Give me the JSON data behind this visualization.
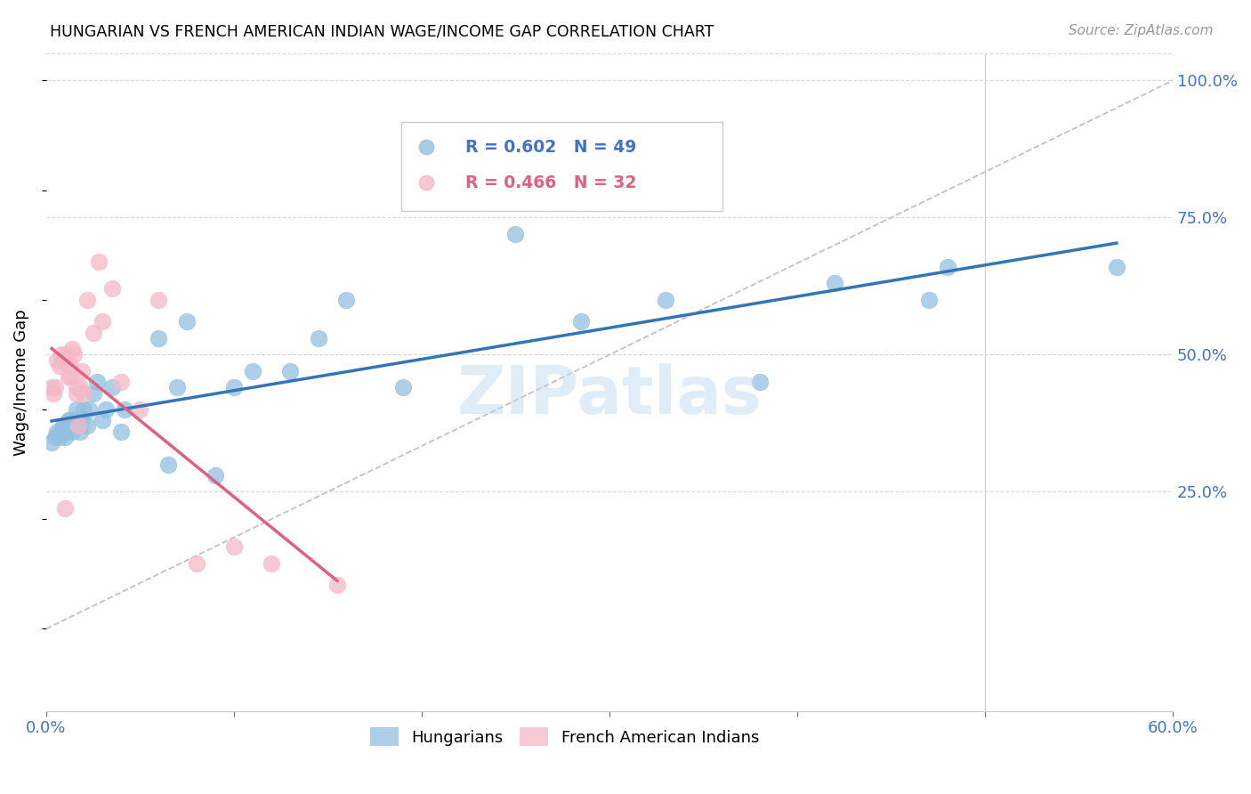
{
  "title": "HUNGARIAN VS FRENCH AMERICAN INDIAN WAGE/INCOME GAP CORRELATION CHART",
  "source": "Source: ZipAtlas.com",
  "ylabel": "Wage/Income Gap",
  "watermark": "ZIPatlas",
  "xlim": [
    0.0,
    0.6
  ],
  "ylim": [
    -0.15,
    1.05
  ],
  "xticks": [
    0.0,
    0.1,
    0.2,
    0.3,
    0.4,
    0.5,
    0.6
  ],
  "xticklabels": [
    "0.0%",
    "",
    "",
    "",
    "",
    "",
    "60.0%"
  ],
  "yticks_right": [
    0.25,
    0.5,
    0.75,
    1.0
  ],
  "ytick_labels_right": [
    "25.0%",
    "50.0%",
    "75.0%",
    "100.0%"
  ],
  "blue_color": "#92c0e0",
  "pink_color": "#f5b8c8",
  "blue_label": "Hungarians",
  "pink_label": "French American Indians",
  "blue_R": 0.602,
  "blue_N": 49,
  "pink_R": 0.466,
  "pink_N": 32,
  "trend_blue_color": "#3575b5",
  "trend_pink_color": "#e06080",
  "legend_blue_text_color": "#4472c4",
  "legend_pink_text_color": "#e06080",
  "axis_color": "#4472c4",
  "grid_color": "#d8d8d8",
  "blue_scatter_x": [
    0.003,
    0.005,
    0.006,
    0.007,
    0.008,
    0.009,
    0.01,
    0.01,
    0.01,
    0.011,
    0.012,
    0.012,
    0.013,
    0.013,
    0.014,
    0.015,
    0.015,
    0.016,
    0.018,
    0.019,
    0.02,
    0.022,
    0.023,
    0.025,
    0.027,
    0.03,
    0.032,
    0.035,
    0.04,
    0.042,
    0.06,
    0.065,
    0.07,
    0.075,
    0.09,
    0.1,
    0.11,
    0.13,
    0.145,
    0.16,
    0.19,
    0.25,
    0.285,
    0.33,
    0.38,
    0.42,
    0.47,
    0.48,
    0.57
  ],
  "blue_scatter_y": [
    0.34,
    0.35,
    0.36,
    0.35,
    0.36,
    0.37,
    0.35,
    0.36,
    0.37,
    0.36,
    0.37,
    0.38,
    0.37,
    0.38,
    0.36,
    0.37,
    0.38,
    0.4,
    0.36,
    0.38,
    0.4,
    0.37,
    0.4,
    0.43,
    0.45,
    0.38,
    0.4,
    0.44,
    0.36,
    0.4,
    0.53,
    0.3,
    0.44,
    0.56,
    0.28,
    0.44,
    0.47,
    0.47,
    0.53,
    0.6,
    0.44,
    0.72,
    0.56,
    0.6,
    0.45,
    0.63,
    0.6,
    0.66,
    0.66
  ],
  "pink_scatter_x": [
    0.003,
    0.004,
    0.005,
    0.006,
    0.007,
    0.008,
    0.009,
    0.01,
    0.011,
    0.012,
    0.013,
    0.013,
    0.014,
    0.015,
    0.016,
    0.016,
    0.017,
    0.018,
    0.019,
    0.02,
    0.022,
    0.025,
    0.028,
    0.03,
    0.035,
    0.04,
    0.05,
    0.06,
    0.08,
    0.1,
    0.12,
    0.155
  ],
  "pink_scatter_y": [
    0.44,
    0.43,
    0.44,
    0.49,
    0.48,
    0.5,
    0.49,
    0.22,
    0.5,
    0.46,
    0.48,
    0.46,
    0.51,
    0.5,
    0.43,
    0.44,
    0.37,
    0.44,
    0.47,
    0.43,
    0.6,
    0.54,
    0.67,
    0.56,
    0.62,
    0.45,
    0.4,
    0.6,
    0.12,
    0.15,
    0.12,
    0.08
  ],
  "diag_line_x": [
    0.0,
    0.6
  ],
  "diag_line_y": [
    0.0,
    1.0
  ],
  "vline_x": 0.5
}
